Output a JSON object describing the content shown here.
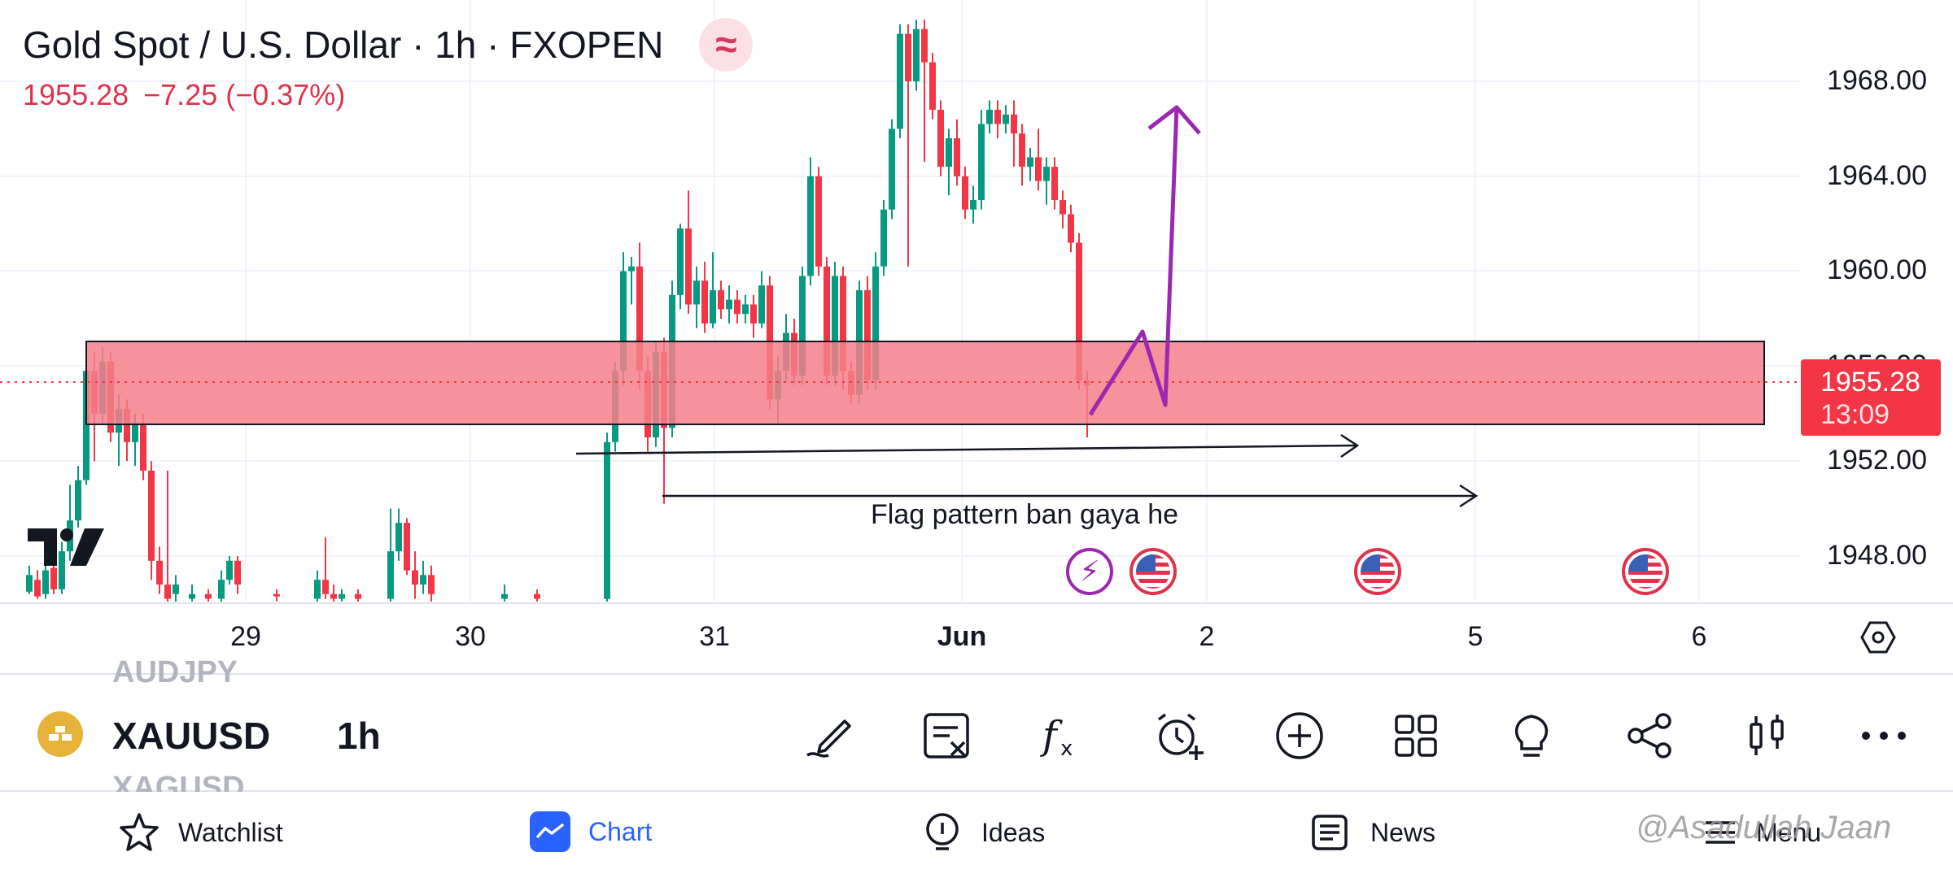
{
  "header": {
    "title": "Gold Spot / U.S. Dollar · 1h · FXOPEN",
    "badge_glyph": "≈",
    "price": "1955.28",
    "change": "−7.25 (−0.37%)"
  },
  "price_axis": {
    "labels": [
      "1968.00",
      "1964.00",
      "1960.00",
      "1956.00",
      "1952.00",
      "1948.00"
    ],
    "current_price": "1955.28",
    "countdown": "13:09"
  },
  "date_axis": {
    "labels": [
      "29",
      "30",
      "31",
      "Jun",
      "2",
      "5",
      "6"
    ]
  },
  "annotation_text": "Flag pattern ban gaya he",
  "colors": {
    "up": "#089981",
    "down": "#f23645",
    "zone": "#f47f89",
    "drawing": "#9c27b0",
    "accent": "#2962ff"
  },
  "symbol_bar": {
    "symbol": "XAUUSD",
    "interval": "1h",
    "prev_symbol": "AUDJPY",
    "next_symbol": "XAGUSD",
    "tools": [
      "draw-icon",
      "clear-drawings-icon",
      "indicators-icon",
      "alert-icon",
      "add-icon",
      "layouts-icon",
      "ideas-bulb-icon",
      "share-icon",
      "chart-type-icon",
      "more-icon"
    ]
  },
  "bottom_nav": {
    "items": [
      {
        "label": "Watchlist",
        "icon": "star-icon"
      },
      {
        "label": "Chart",
        "icon": "chart-icon"
      },
      {
        "label": "Ideas",
        "icon": "ideas-icon"
      },
      {
        "label": "News",
        "icon": "news-icon"
      },
      {
        "label": "Menu",
        "icon": "menu-icon"
      }
    ],
    "watermark": "@Asadullah Jaan"
  }
}
